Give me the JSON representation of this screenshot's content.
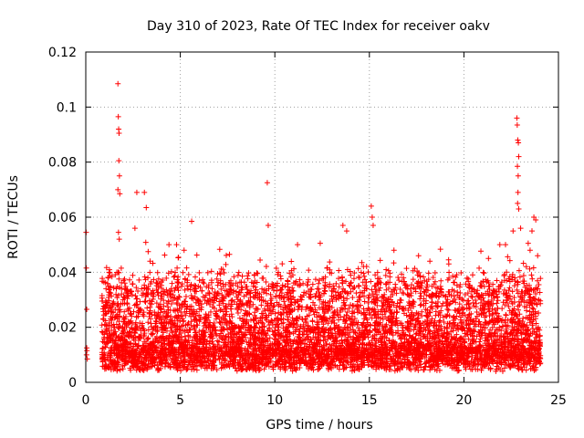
{
  "chart_data": {
    "type": "scatter",
    "title": "Day 310 of 2023, Rate Of TEC Index for receiver oakv",
    "xlabel": "GPS time / hours",
    "ylabel": "ROTI / TECUs",
    "xlim": [
      0,
      25
    ],
    "ylim": [
      0,
      0.12
    ],
    "xticks": [
      0,
      5,
      10,
      15,
      20,
      25
    ],
    "xtick_labels": [
      "0",
      "5",
      "10",
      "15",
      "20",
      "25"
    ],
    "yticks": [
      0,
      0.02,
      0.04,
      0.06,
      0.08,
      0.1,
      0.12
    ],
    "ytick_labels": [
      "0",
      "0.02",
      "0.04",
      "0.06",
      "0.08",
      "0.1",
      "0.12"
    ],
    "grid": true,
    "marker": "+",
    "color": "#ff0000",
    "series": [
      {
        "name": "ROTI",
        "x": [
          0.02,
          0.03,
          0.05,
          0.05,
          0.06,
          0.04,
          0.08,
          0.9,
          1.0,
          1.1,
          1.2,
          1.7,
          1.72,
          1.74,
          1.76,
          1.75,
          1.78,
          1.7,
          1.8,
          1.73,
          1.77,
          1.71,
          2.7,
          3.1,
          3.2,
          3.3,
          2.6,
          3.4,
          5.6,
          4.4,
          4.8,
          5.2,
          7.6,
          9.6,
          9.65,
          11.2,
          12.4,
          13.6,
          13.8,
          15.1,
          15.15,
          15.2,
          16.3,
          17.6,
          18.2,
          19.2,
          21.3,
          21.9,
          22.2,
          22.6,
          22.8,
          22.82,
          22.85,
          22.88,
          22.9,
          22.83,
          22.87,
          22.86,
          22.84,
          22.9,
          23.0,
          23.6,
          23.7,
          23.8,
          23.4,
          23.5,
          23.9,
          23.3
        ],
        "y": [
          0.0545,
          0.0415,
          0.0265,
          0.0125,
          0.0115,
          0.01,
          0.0085,
          0.018,
          0.021,
          0.025,
          0.028,
          0.1085,
          0.0965,
          0.092,
          0.0905,
          0.0805,
          0.075,
          0.07,
          0.0685,
          0.0545,
          0.052,
          0.04,
          0.069,
          0.069,
          0.0635,
          0.0475,
          0.056,
          0.044,
          0.0585,
          0.05,
          0.05,
          0.048,
          0.0465,
          0.0725,
          0.057,
          0.05,
          0.0505,
          0.057,
          0.055,
          0.064,
          0.06,
          0.057,
          0.048,
          0.046,
          0.044,
          0.043,
          0.045,
          0.05,
          0.05,
          0.055,
          0.096,
          0.0935,
          0.088,
          0.087,
          0.082,
          0.0785,
          0.075,
          0.069,
          0.065,
          0.063,
          0.056,
          0.055,
          0.06,
          0.059,
          0.0505,
          0.048,
          0.046,
          0.042
        ]
      }
    ]
  }
}
